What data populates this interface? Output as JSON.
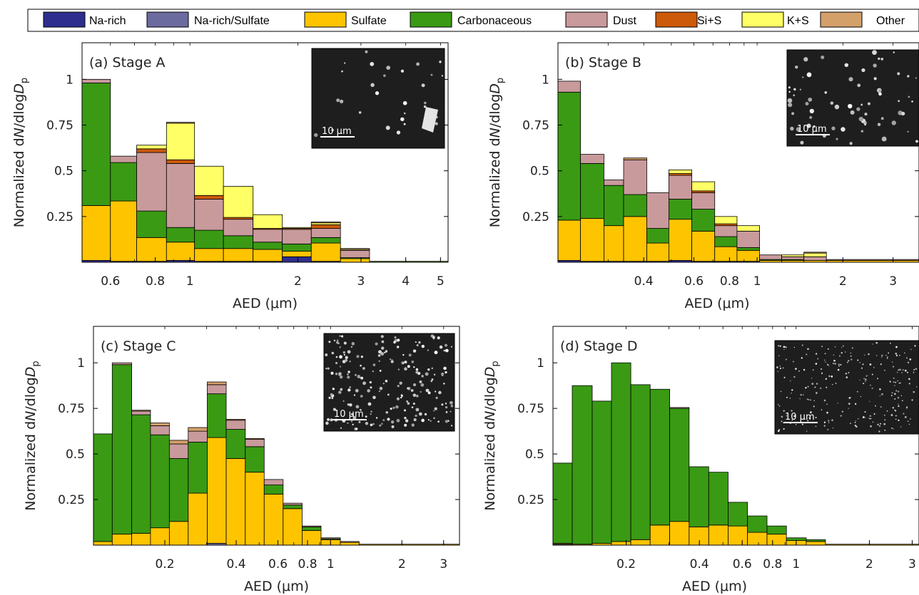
{
  "colors": {
    "Na-rich": "#2e2e8f",
    "Na-rich/Sulfate": "#6b6b9f",
    "Sulfate": "#ffc400",
    "Carbonaceous": "#3a9a14",
    "Dust": "#c99a9c",
    "Si+S": "#cc5a0a",
    "K+S": "#ffff66",
    "Other": "#d4a06a"
  },
  "legend": [
    "Na-rich",
    "Na-rich/Sulfate",
    "Sulfate",
    "Carbonaceous",
    "Dust",
    "Si+S",
    "K+S",
    "Other"
  ],
  "inset_scale": "10 μm",
  "chart_data": [
    {
      "type": "bar",
      "stacked": true,
      "title": "(a) Stage A",
      "xlabel": "AED (μm)",
      "ylabel": "Normalized dN/dlogDp",
      "xscale": "log",
      "xlim": [
        0.5,
        5.25
      ],
      "ylim": [
        0,
        1.2
      ],
      "xticks": [
        0.6,
        0.8,
        1,
        2,
        3,
        4,
        5
      ],
      "yticks": [
        0.25,
        0.5,
        0.75,
        1
      ],
      "bins": [
        {
          "lo": 0.5,
          "hi": 0.6,
          "vals": {
            "Na-rich": 0.01,
            "Sulfate": 0.3,
            "Carbonaceous": 0.67,
            "Dust": 0.02
          }
        },
        {
          "lo": 0.6,
          "hi": 0.71,
          "vals": {
            "Na-rich": 0.005,
            "Sulfate": 0.33,
            "Carbonaceous": 0.21,
            "Dust": 0.035
          }
        },
        {
          "lo": 0.71,
          "hi": 0.86,
          "vals": {
            "Na-rich": 0.005,
            "Sulfate": 0.13,
            "Carbonaceous": 0.145,
            "Dust": 0.32,
            "Si+S": 0.02,
            "K+S": 0.02
          }
        },
        {
          "lo": 0.86,
          "hi": 1.03,
          "vals": {
            "Na-rich": 0.01,
            "Sulfate": 0.1,
            "Carbonaceous": 0.08,
            "Dust": 0.35,
            "Si+S": 0.02,
            "K+S": 0.2,
            "Other": 0.005
          }
        },
        {
          "lo": 1.03,
          "hi": 1.24,
          "vals": {
            "Na-rich": 0.005,
            "Sulfate": 0.07,
            "Carbonaceous": 0.1,
            "Dust": 0.17,
            "Si+S": 0.02,
            "K+S": 0.16
          }
        },
        {
          "lo": 1.24,
          "hi": 1.5,
          "vals": {
            "Na-rich": 0.005,
            "Sulfate": 0.07,
            "Carbonaceous": 0.07,
            "Dust": 0.09,
            "Si+S": 0.01,
            "K+S": 0.17
          }
        },
        {
          "lo": 1.5,
          "hi": 1.81,
          "vals": {
            "Na-rich": 0.005,
            "Sulfate": 0.065,
            "Carbonaceous": 0.04,
            "Dust": 0.07,
            "Si+S": 0.005,
            "K+S": 0.075
          }
        },
        {
          "lo": 1.81,
          "hi": 2.18,
          "vals": {
            "Na-rich": 0.03,
            "Sulfate": 0.03,
            "Carbonaceous": 0.04,
            "Dust": 0.08,
            "Si+S": 0.005,
            "K+S": 0.005
          }
        },
        {
          "lo": 2.18,
          "hi": 2.63,
          "vals": {
            "Na-rich": 0.005,
            "Sulfate": 0.1,
            "Carbonaceous": 0.03,
            "Dust": 0.05,
            "Si+S": 0.02,
            "K+S": 0.01,
            "Other": 0.005
          }
        },
        {
          "lo": 2.63,
          "hi": 3.17,
          "vals": {
            "Sulfate": 0.02,
            "Carbonaceous": 0.005,
            "Dust": 0.04,
            "K+S": 0.005,
            "Other": 0.005
          }
        },
        {
          "lo": 3.17,
          "hi": 5.25,
          "vals": {
            "Carbonaceous": 0.005
          }
        }
      ]
    },
    {
      "type": "bar",
      "stacked": true,
      "title": "(b) Stage B",
      "xlabel": "AED (μm)",
      "ylabel": "Normalized dN/dlogDp",
      "xscale": "log",
      "xlim": [
        0.2,
        3.7
      ],
      "ylim": [
        0,
        1.2
      ],
      "xticks": [
        0.4,
        0.6,
        0.8,
        1,
        2,
        3
      ],
      "yticks": [
        0.25,
        0.5,
        0.75,
        1
      ],
      "bins": [
        {
          "lo": 0.2,
          "hi": 0.24,
          "vals": {
            "Na-rich": 0.01,
            "Sulfate": 0.22,
            "Carbonaceous": 0.7,
            "Dust": 0.06
          }
        },
        {
          "lo": 0.24,
          "hi": 0.29,
          "vals": {
            "Na-rich": 0.005,
            "Sulfate": 0.235,
            "Carbonaceous": 0.3,
            "Dust": 0.05
          }
        },
        {
          "lo": 0.29,
          "hi": 0.34,
          "vals": {
            "Na-rich": 0.005,
            "Sulfate": 0.195,
            "Carbonaceous": 0.22,
            "Dust": 0.03
          }
        },
        {
          "lo": 0.34,
          "hi": 0.41,
          "vals": {
            "Na-rich": 0.005,
            "Sulfate": 0.245,
            "Carbonaceous": 0.12,
            "Dust": 0.19,
            "Other": 0.01
          }
        },
        {
          "lo": 0.41,
          "hi": 0.49,
          "vals": {
            "Na-rich": 0.005,
            "Sulfate": 0.1,
            "Carbonaceous": 0.08,
            "Dust": 0.195
          }
        },
        {
          "lo": 0.49,
          "hi": 0.59,
          "vals": {
            "Na-rich": 0.01,
            "Sulfate": 0.225,
            "Carbonaceous": 0.11,
            "Dust": 0.13,
            "Si+S": 0.01,
            "K+S": 0.02
          }
        },
        {
          "lo": 0.59,
          "hi": 0.71,
          "vals": {
            "Na-rich": 0.005,
            "Sulfate": 0.165,
            "Carbonaceous": 0.12,
            "Dust": 0.09,
            "Si+S": 0.01,
            "K+S": 0.05
          }
        },
        {
          "lo": 0.71,
          "hi": 0.85,
          "vals": {
            "Na-rich": 0.005,
            "Sulfate": 0.08,
            "Carbonaceous": 0.055,
            "Dust": 0.06,
            "Si+S": 0.01,
            "K+S": 0.04
          }
        },
        {
          "lo": 0.85,
          "hi": 1.02,
          "vals": {
            "Na-rich": 0.005,
            "Sulfate": 0.06,
            "Carbonaceous": 0.015,
            "Dust": 0.09,
            "K+S": 0.03
          }
        },
        {
          "lo": 1.02,
          "hi": 1.22,
          "vals": {
            "Sulfate": 0.01,
            "Carbonaceous": 0.005,
            "Dust": 0.025
          }
        },
        {
          "lo": 1.22,
          "hi": 1.46,
          "vals": {
            "Sulfate": 0.01,
            "Carbonaceous": 0.005,
            "Dust": 0.015,
            "K+S": 0.01
          }
        },
        {
          "lo": 1.46,
          "hi": 1.75,
          "vals": {
            "Sulfate": 0.01,
            "Dust": 0.02,
            "K+S": 0.02,
            "Other": 0.005
          }
        },
        {
          "lo": 1.75,
          "hi": 3.7,
          "vals": {
            "Sulfate": 0.01,
            "Dust": 0.005
          }
        }
      ]
    },
    {
      "type": "bar",
      "stacked": true,
      "title": "(c) Stage C",
      "xlabel": "AED (μm)",
      "ylabel": "Normalized dN/dlogDp",
      "xscale": "log",
      "xlim": [
        0.1,
        3.5
      ],
      "ylim": [
        0,
        1.2
      ],
      "xticks": [
        0.2,
        0.4,
        0.6,
        0.8,
        1,
        2,
        3
      ],
      "yticks": [
        0.25,
        0.5,
        0.75,
        1
      ],
      "bins": [
        {
          "lo": 0.1,
          "hi": 0.12,
          "vals": {
            "Sulfate": 0.02,
            "Carbonaceous": 0.59
          }
        },
        {
          "lo": 0.12,
          "hi": 0.145,
          "vals": {
            "Sulfate": 0.06,
            "Carbonaceous": 0.93,
            "Dust": 0.01
          }
        },
        {
          "lo": 0.145,
          "hi": 0.174,
          "vals": {
            "Sulfate": 0.065,
            "Carbonaceous": 0.65,
            "Dust": 0.02,
            "Other": 0.005
          }
        },
        {
          "lo": 0.174,
          "hi": 0.209,
          "vals": {
            "Sulfate": 0.095,
            "Carbonaceous": 0.51,
            "Dust": 0.05,
            "Other": 0.015
          }
        },
        {
          "lo": 0.209,
          "hi": 0.251,
          "vals": {
            "Sulfate": 0.13,
            "Carbonaceous": 0.345,
            "Dust": 0.08,
            "Other": 0.02
          }
        },
        {
          "lo": 0.251,
          "hi": 0.302,
          "vals": {
            "Sulfate": 0.285,
            "Carbonaceous": 0.28,
            "Dust": 0.06,
            "Other": 0.02
          }
        },
        {
          "lo": 0.302,
          "hi": 0.363,
          "vals": {
            "Na-rich/Sulfate": 0.01,
            "Sulfate": 0.58,
            "Carbonaceous": 0.24,
            "Dust": 0.05,
            "Other": 0.015
          }
        },
        {
          "lo": 0.363,
          "hi": 0.437,
          "vals": {
            "Sulfate": 0.475,
            "Carbonaceous": 0.16,
            "Dust": 0.05,
            "Other": 0.005
          }
        },
        {
          "lo": 0.437,
          "hi": 0.525,
          "vals": {
            "Sulfate": 0.4,
            "Carbonaceous": 0.14,
            "Dust": 0.04,
            "Other": 0.005
          }
        },
        {
          "lo": 0.525,
          "hi": 0.631,
          "vals": {
            "Sulfate": 0.28,
            "Carbonaceous": 0.05,
            "Dust": 0.03
          }
        },
        {
          "lo": 0.631,
          "hi": 0.759,
          "vals": {
            "Sulfate": 0.2,
            "Carbonaceous": 0.02,
            "Dust": 0.01
          }
        },
        {
          "lo": 0.759,
          "hi": 0.912,
          "vals": {
            "Sulfate": 0.08,
            "Carbonaceous": 0.02,
            "Dust": 0.005
          }
        },
        {
          "lo": 0.912,
          "hi": 1.1,
          "vals": {
            "Sulfate": 0.03,
            "Carbonaceous": 0.005,
            "Dust": 0.005
          }
        },
        {
          "lo": 1.1,
          "hi": 1.32,
          "vals": {
            "Sulfate": 0.015,
            "Dust": 0.005
          }
        },
        {
          "lo": 1.32,
          "hi": 3.5,
          "vals": {
            "Sulfate": 0.005
          }
        }
      ]
    },
    {
      "type": "bar",
      "stacked": true,
      "title": "(d) Stage D",
      "xlabel": "AED (μm)",
      "ylabel": "Normalized dN/dlogDp",
      "xscale": "log",
      "xlim": [
        0.1,
        3.2
      ],
      "ylim": [
        0,
        1.2
      ],
      "xticks": [
        0.2,
        0.4,
        0.6,
        0.8,
        1,
        2,
        3
      ],
      "yticks": [
        0.25,
        0.5,
        0.75,
        1
      ],
      "bins": [
        {
          "lo": 0.1,
          "hi": 0.12,
          "vals": {
            "Na-rich": 0.005,
            "Sulfate": 0.005,
            "Carbonaceous": 0.44
          }
        },
        {
          "lo": 0.12,
          "hi": 0.145,
          "vals": {
            "Sulfate": 0.005,
            "Carbonaceous": 0.87
          }
        },
        {
          "lo": 0.145,
          "hi": 0.174,
          "vals": {
            "Sulfate": 0.01,
            "Carbonaceous": 0.78
          }
        },
        {
          "lo": 0.174,
          "hi": 0.209,
          "vals": {
            "Sulfate": 0.02,
            "Carbonaceous": 0.98
          }
        },
        {
          "lo": 0.209,
          "hi": 0.251,
          "vals": {
            "Sulfate": 0.03,
            "Carbonaceous": 0.85
          }
        },
        {
          "lo": 0.251,
          "hi": 0.302,
          "vals": {
            "Sulfate": 0.11,
            "Carbonaceous": 0.745
          }
        },
        {
          "lo": 0.302,
          "hi": 0.363,
          "vals": {
            "Sulfate": 0.13,
            "Carbonaceous": 0.62,
            "Dust": 0.005
          }
        },
        {
          "lo": 0.363,
          "hi": 0.437,
          "vals": {
            "Sulfate": 0.1,
            "Carbonaceous": 0.33
          }
        },
        {
          "lo": 0.437,
          "hi": 0.525,
          "vals": {
            "Sulfate": 0.11,
            "Carbonaceous": 0.29
          }
        },
        {
          "lo": 0.525,
          "hi": 0.631,
          "vals": {
            "Sulfate": 0.105,
            "Carbonaceous": 0.13
          }
        },
        {
          "lo": 0.631,
          "hi": 0.759,
          "vals": {
            "Sulfate": 0.07,
            "Carbonaceous": 0.09
          }
        },
        {
          "lo": 0.759,
          "hi": 0.912,
          "vals": {
            "Sulfate": 0.06,
            "Carbonaceous": 0.045
          }
        },
        {
          "lo": 0.912,
          "hi": 1.1,
          "vals": {
            "Sulfate": 0.025,
            "Carbonaceous": 0.015
          }
        },
        {
          "lo": 1.1,
          "hi": 1.32,
          "vals": {
            "Sulfate": 0.02,
            "Carbonaceous": 0.01
          }
        },
        {
          "lo": 1.32,
          "hi": 3.2,
          "vals": {
            "Sulfate": 0.005
          }
        }
      ]
    }
  ]
}
